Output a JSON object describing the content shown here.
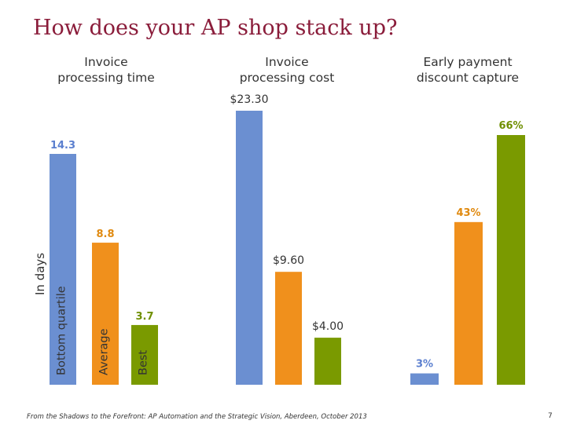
{
  "title": "How does your AP shop stack up?",
  "ylabel": "In days",
  "footer": "From the Shadows to the Forefront: AP Automation and the Strategic Vision, Aberdeen, October 2013",
  "page_number": "7",
  "colors": {
    "bottom_quartile": "#6b8fd1",
    "average": "#f0901c",
    "best": "#7a9a00"
  },
  "chart_data": [
    {
      "type": "bar",
      "title": "Invoice\nprocessing time",
      "categories": [
        "Bottom quartile",
        "Average",
        "Best"
      ],
      "values": [
        14.3,
        8.8,
        3.7
      ],
      "labels": [
        "14.3",
        "8.8",
        "3.7"
      ],
      "label_colors": [
        "#5b7fcf",
        "#e08a10",
        "#6f8f00"
      ],
      "ylabel": "In days"
    },
    {
      "type": "bar",
      "title": "Invoice\nprocessing cost",
      "categories": [
        "Bottom quartile",
        "Average",
        "Best"
      ],
      "values": [
        23.3,
        9.6,
        4.0
      ],
      "labels": [
        "$23.30",
        "$9.60",
        "$4.00"
      ],
      "label_colors": [
        "#333333",
        "#333333",
        "#333333"
      ]
    },
    {
      "type": "bar",
      "title": "Early payment\ndiscount capture",
      "categories": [
        "Bottom quartile",
        "Average",
        "Best"
      ],
      "values": [
        3,
        43,
        66
      ],
      "labels": [
        "3%",
        "43%",
        "66%"
      ],
      "label_colors": [
        "#5b7fcf",
        "#e08a10",
        "#6f8f00"
      ]
    }
  ]
}
